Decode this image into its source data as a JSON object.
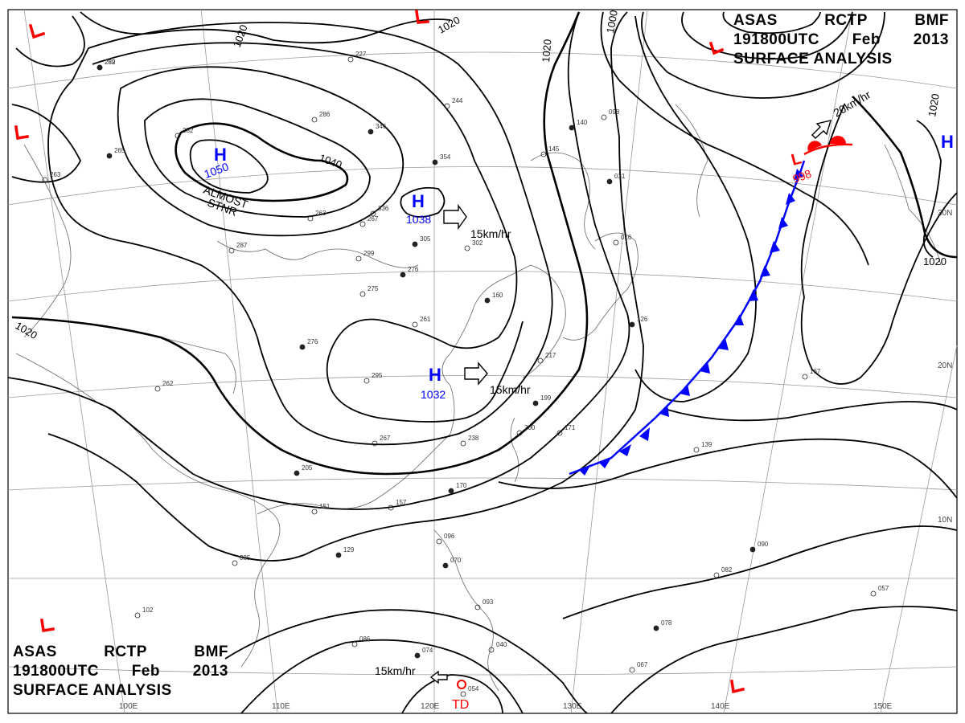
{
  "header": {
    "line1": [
      "ASAS",
      "RCTP",
      "BMF"
    ],
    "line2": [
      "191800UTC",
      "Feb",
      "2013"
    ],
    "line3": "SURFACE  ANALYSIS"
  },
  "pressure_systems": {
    "highs": [
      {
        "symbol": "H",
        "value": "1050",
        "note": "ALMOST STNR"
      },
      {
        "symbol": "H",
        "value": "1038"
      },
      {
        "symbol": "H",
        "value": "1032"
      },
      {
        "symbol": "H",
        "value": ""
      }
    ],
    "lows": [
      {
        "symbol": "L",
        "value": "998"
      }
    ],
    "note_high": [
      "ALMOST",
      "STNR"
    ],
    "tropical": "TD"
  },
  "isobar_labels": [
    "1020",
    "1020",
    "1020",
    "1040",
    "1020",
    "1000",
    "1020",
    "1020",
    "1020"
  ],
  "motion_labels": [
    "15km/hr",
    "15km/hr",
    "20km/hr",
    "15km/hr"
  ],
  "lon_labels": [
    "110E",
    "120E",
    "130E",
    "140E",
    "150E",
    "100E"
  ],
  "lat_labels": [
    "20N",
    "10N",
    "30N"
  ],
  "station_numbers": [
    "289",
    "227",
    "244",
    "346",
    "286",
    "282",
    "265",
    "263",
    "267",
    "305",
    "302",
    "299",
    "276",
    "275",
    "287",
    "276",
    "295",
    "267",
    "205",
    "151",
    "085",
    "129",
    "102",
    "086",
    "074",
    "040",
    "093",
    "070",
    "096",
    "157",
    "170",
    "238",
    "200",
    "199",
    "171",
    "217",
    "126",
    "167",
    "139",
    "090",
    "082",
    "057",
    "078",
    "067",
    "054",
    "031",
    "016",
    "145",
    "140",
    "098",
    "262",
    "160",
    "261",
    "263",
    "354",
    "336",
    "252"
  ],
  "colors": {
    "high": "#0000ff",
    "low": "#ff0000",
    "cold_front": "#0000ff",
    "warm_front": "#ff0000",
    "isobar": "#000000",
    "grid": "#888888",
    "coast": "#555555"
  },
  "icons": {
    "high": "H-letter",
    "low": "L-letter",
    "motion": "hollow-arrow"
  }
}
